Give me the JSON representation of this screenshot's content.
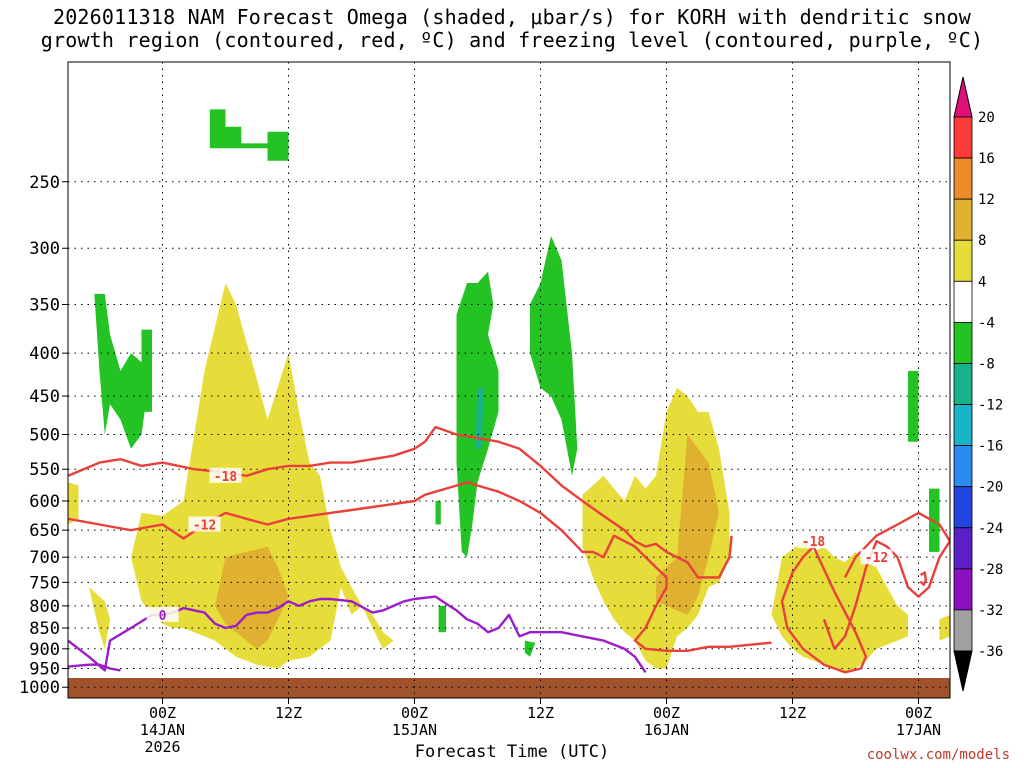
{
  "title_line1": "2026011318 NAM Forecast Omega (shaded, μbar/s) for KORH with dendritic snow",
  "title_line2": "growth region (contoured, red, ºC) and freezing level (contoured, purple, ºC)",
  "xlabel": "Forecast Time (UTC)",
  "credit": "coolwx.com/models",
  "chart_data": {
    "type": "heatmap",
    "title": "2026011318 NAM Forecast Omega (shaded, μbar/s) for KORH with dendritic snow growth region (contoured, red, ºC) and freezing level (contoured, purple, ºC)",
    "xlabel": "Forecast Time (UTC)",
    "ylabel": "",
    "y_scale": "log-pressure",
    "ylim": [
      1030,
      180
    ],
    "y_ticks": [
      "250",
      "300",
      "350",
      "400",
      "450",
      "500",
      "550",
      "600",
      "650",
      "700",
      "750",
      "800",
      "850",
      "900",
      "950",
      "1000"
    ],
    "x_hours_range": [
      -9,
      75
    ],
    "x_ticks": [
      {
        "h": 0,
        "label": "00Z",
        "date": "14JAN",
        "year": "2026"
      },
      {
        "h": 12,
        "label": "12Z"
      },
      {
        "h": 24,
        "label": "00Z",
        "date": "15JAN"
      },
      {
        "h": 36,
        "label": "12Z"
      },
      {
        "h": 48,
        "label": "00Z",
        "date": "16JAN"
      },
      {
        "h": 60,
        "label": "12Z"
      },
      {
        "h": 72,
        "label": "00Z",
        "date": "17JAN"
      }
    ],
    "grid": true,
    "colorbar": {
      "levels": [
        "20",
        "16",
        "12",
        "8",
        "4",
        "-4",
        "-8",
        "-12",
        "-16",
        "-20",
        "-24",
        "-28",
        "-32",
        "-36"
      ],
      "colors": [
        "#ff3a3a",
        "#ed8a2a",
        "#e0b030",
        "#e6dc3a",
        "#ffffff",
        "#22c322",
        "#19b38a",
        "#18b5c8",
        "#2a8cf0",
        "#2244e0",
        "#5a20c8",
        "#8a10c0",
        "#a0a0a0"
      ],
      "top_arrow": "#e0107a",
      "bottom_arrow": "#000000"
    },
    "ground_pressure": 975,
    "omega_regions": [
      {
        "v": 6,
        "x": [
          -7,
          -5.5,
          -5,
          -5.5,
          -6
        ],
        "p": [
          760,
          790,
          830,
          900,
          860
        ]
      },
      {
        "v": 6,
        "x": [
          -9,
          -8,
          -8,
          -9
        ],
        "p": [
          570,
          575,
          630,
          640
        ]
      },
      {
        "v": 6,
        "x": [
          -2,
          0,
          2,
          4,
          6,
          7,
          9,
          10,
          12,
          13,
          14,
          15,
          16,
          17,
          18,
          19,
          20,
          21,
          22,
          21,
          20,
          19,
          18,
          17,
          16,
          15,
          14,
          12,
          11,
          10,
          9,
          8,
          7,
          6,
          5,
          4,
          3,
          2,
          1,
          0,
          -1,
          -2,
          -3
        ],
        "p": [
          620,
          625,
          600,
          420,
          330,
          350,
          430,
          480,
          400,
          470,
          540,
          560,
          650,
          720,
          760,
          800,
          820,
          860,
          880,
          900,
          850,
          800,
          820,
          760,
          880,
          900,
          920,
          930,
          950,
          945,
          940,
          930,
          920,
          900,
          880,
          870,
          860,
          850,
          850,
          840,
          820,
          790,
          700
        ]
      },
      {
        "v": 10,
        "x": [
          6,
          8,
          10,
          11,
          12,
          11,
          10,
          9,
          8,
          7,
          6,
          5
        ],
        "p": [
          700,
          690,
          680,
          720,
          780,
          830,
          880,
          900,
          880,
          860,
          840,
          800
        ]
      },
      {
        "v": 6,
        "x": [
          40,
          42,
          43,
          44,
          45,
          46,
          47,
          48,
          49,
          50,
          51,
          52,
          53,
          54,
          54,
          53,
          52,
          51,
          50,
          49,
          48,
          47,
          46,
          45,
          44,
          43,
          42,
          41,
          40
        ],
        "p": [
          590,
          560,
          580,
          600,
          560,
          580,
          560,
          470,
          440,
          450,
          470,
          470,
          520,
          620,
          700,
          750,
          760,
          820,
          850,
          870,
          950,
          950,
          930,
          880,
          860,
          830,
          790,
          740,
          680
        ]
      },
      {
        "v": 10,
        "x": [
          47,
          49,
          50,
          52,
          53,
          52,
          51,
          50,
          49,
          48,
          47
        ],
        "p": [
          740,
          700,
          500,
          540,
          620,
          700,
          780,
          820,
          810,
          800,
          790
        ]
      },
      {
        "v": 6,
        "x": [
          59,
          61,
          62,
          63,
          64,
          65,
          66,
          67,
          68,
          69,
          70,
          71,
          71,
          70,
          69,
          68,
          67,
          66,
          65,
          64,
          63,
          62,
          61,
          60,
          59,
          58
        ],
        "p": [
          700,
          670,
          690,
          680,
          700,
          710,
          690,
          710,
          720,
          760,
          800,
          820,
          870,
          880,
          890,
          900,
          930,
          950,
          960,
          950,
          940,
          930,
          920,
          900,
          870,
          820
        ]
      },
      {
        "v": 6,
        "x": [
          74,
          75,
          75,
          74
        ],
        "p": [
          830,
          820,
          870,
          880
        ]
      },
      {
        "v": -6,
        "x": [
          -6.5,
          -5.5,
          -5,
          -4,
          -3,
          -2,
          -1.5,
          -2,
          -3,
          -4,
          -5,
          -5.5,
          -6
        ],
        "p": [
          340,
          340,
          380,
          420,
          400,
          410,
          450,
          500,
          520,
          480,
          460,
          500,
          420
        ]
      },
      {
        "v": -6,
        "x": [
          -2,
          -1,
          -1,
          -2
        ],
        "p": [
          375,
          375,
          470,
          470
        ]
      },
      {
        "v": -6,
        "x": [
          4.5,
          6,
          6,
          7.5,
          7.5,
          10,
          10,
          12,
          12,
          10,
          10,
          4.5
        ],
        "p": [
          205,
          205,
          215,
          215,
          225,
          225,
          218,
          218,
          236,
          236,
          228,
          228
        ]
      },
      {
        "v": -6,
        "x": [
          28,
          29,
          30,
          31,
          31.5,
          31,
          32,
          32,
          31,
          30,
          29.5,
          29,
          28.5,
          28
        ],
        "p": [
          360,
          330,
          330,
          320,
          350,
          380,
          420,
          470,
          520,
          570,
          640,
          700,
          690,
          540
        ]
      },
      {
        "v": -6,
        "x": [
          35,
          36,
          37,
          38,
          39,
          39.5,
          39,
          38,
          37,
          36,
          35
        ],
        "p": [
          350,
          330,
          290,
          310,
          400,
          520,
          560,
          480,
          450,
          440,
          400
        ]
      },
      {
        "v": -6,
        "x": [
          26,
          26.5,
          26.5,
          26
        ],
        "p": [
          600,
          600,
          640,
          640
        ]
      },
      {
        "v": -6,
        "x": [
          26.3,
          27,
          27,
          26.3
        ],
        "p": [
          800,
          800,
          860,
          860
        ]
      },
      {
        "v": -6,
        "x": [
          34.5,
          35.5,
          35,
          34.5
        ],
        "p": [
          880,
          885,
          920,
          910
        ]
      },
      {
        "v": -6,
        "x": [
          71,
          72,
          72,
          71
        ],
        "p": [
          420,
          420,
          510,
          510
        ]
      },
      {
        "v": -6,
        "x": [
          73,
          74,
          74,
          73
        ],
        "p": [
          580,
          580,
          690,
          690
        ]
      },
      {
        "v": -10,
        "x": [
          30,
          30.6,
          30.4,
          29.8
        ],
        "p": [
          440,
          440,
          520,
          520
        ]
      }
    ],
    "contours": [
      {
        "color": "#e8403a",
        "label": "-18",
        "label_at": [
          6,
          560
        ],
        "x": [
          -9,
          -6,
          -4,
          -2,
          0,
          3,
          6,
          8,
          10,
          12,
          14,
          16,
          18,
          20,
          22,
          24,
          25,
          26,
          27,
          28,
          30,
          32,
          34,
          36,
          38,
          40,
          42,
          44,
          45,
          46,
          47,
          48,
          49,
          50,
          51,
          52,
          53,
          54,
          54.2
        ],
        "p": [
          560,
          540,
          535,
          545,
          540,
          550,
          555,
          560,
          550,
          545,
          545,
          540,
          540,
          535,
          530,
          520,
          510,
          490,
          495,
          500,
          505,
          510,
          520,
          545,
          575,
          600,
          625,
          650,
          670,
          680,
          675,
          690,
          700,
          710,
          740,
          740,
          740,
          700,
          660
        ]
      },
      {
        "color": "#e8403a",
        "label": "-12",
        "label_at": [
          4,
          640
        ],
        "x": [
          -9,
          -6,
          -3,
          0,
          2,
          4,
          6,
          8,
          10,
          12,
          14,
          16,
          18,
          20,
          22,
          24,
          25,
          26,
          27,
          28,
          29,
          30,
          31,
          32,
          34,
          36,
          38,
          40,
          41,
          42,
          43,
          44,
          45,
          46,
          47,
          48,
          48,
          47,
          46,
          45,
          46,
          48,
          50,
          52,
          54,
          56,
          58
        ],
        "p": [
          630,
          640,
          650,
          640,
          665,
          640,
          620,
          630,
          640,
          630,
          625,
          620,
          615,
          610,
          605,
          600,
          590,
          585,
          580,
          575,
          570,
          575,
          580,
          585,
          600,
          620,
          650,
          690,
          690,
          700,
          660,
          670,
          680,
          700,
          720,
          740,
          760,
          800,
          850,
          880,
          900,
          905,
          905,
          895,
          895,
          890,
          885
        ]
      },
      {
        "color": "#e8403a",
        "label": "-18",
        "label_at": [
          62,
          670
        ],
        "x": [
          62,
          61,
          60,
          59,
          59.5,
          61,
          63,
          65,
          66.5,
          67,
          66,
          64,
          62
        ],
        "p": [
          680,
          700,
          730,
          790,
          850,
          900,
          940,
          960,
          950,
          920,
          860,
          770,
          680
        ]
      },
      {
        "color": "#e8403a",
        "label": "-12",
        "label_at": [
          68,
          700
        ],
        "x": [
          65,
          66,
          68,
          70,
          72,
          74,
          75,
          74,
          73,
          72,
          71,
          70,
          69,
          68,
          67,
          66,
          65,
          64,
          63
        ],
        "p": [
          740,
          700,
          660,
          640,
          620,
          640,
          670,
          700,
          760,
          780,
          760,
          700,
          680,
          670,
          720,
          800,
          870,
          900,
          830
        ]
      },
      {
        "color": "#e8403a",
        "label": "",
        "label_at": [
          72,
          740
        ],
        "x": [
          72.2,
          72.6,
          72.7,
          72.5,
          72.2
        ],
        "p": [
          735,
          730,
          745,
          755,
          748
        ]
      },
      {
        "color": "#9b1ec8",
        "label": "0",
        "label_at": [
          0,
          820
        ],
        "x": [
          -9,
          -7,
          -5.5,
          -5,
          -3,
          -1,
          0,
          1,
          2,
          4,
          5,
          6,
          7,
          8,
          9,
          10,
          11,
          12,
          13,
          14,
          15,
          16,
          18,
          20,
          21,
          22,
          23,
          24,
          26,
          27,
          28,
          29,
          30,
          31,
          32,
          33,
          34,
          35,
          36,
          38,
          40,
          42,
          44,
          45,
          46
        ],
        "p": [
          880,
          920,
          955,
          880,
          850,
          820,
          820,
          815,
          805,
          815,
          840,
          850,
          845,
          820,
          815,
          815,
          805,
          790,
          800,
          790,
          785,
          785,
          790,
          815,
          810,
          800,
          790,
          785,
          780,
          795,
          810,
          830,
          840,
          860,
          850,
          820,
          870,
          860,
          860,
          860,
          870,
          880,
          900,
          920,
          960
        ]
      },
      {
        "color": "#9b1ec8",
        "label": "",
        "label_at": [
          -9,
          940
        ],
        "x": [
          -9,
          -7,
          -6,
          -5,
          -4
        ],
        "p": [
          945,
          940,
          940,
          950,
          955
        ]
      }
    ]
  }
}
